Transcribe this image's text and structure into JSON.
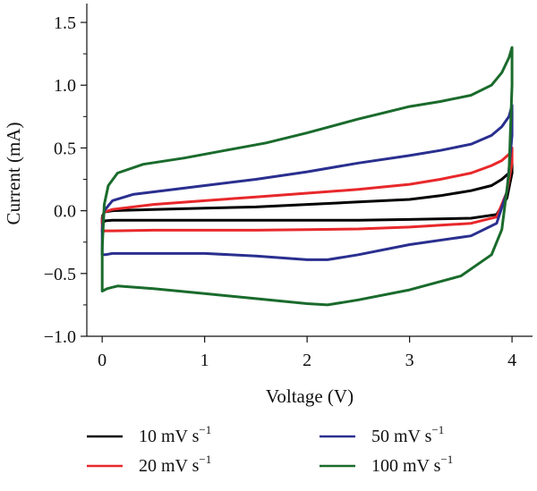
{
  "chart_data": {
    "type": "line",
    "xlabel": "Voltage (V)",
    "ylabel": "Current (mA)",
    "xlim": [
      -0.15,
      4.2
    ],
    "ylim": [
      -1.0,
      1.65
    ],
    "xticks": [
      0,
      1,
      2,
      3,
      4
    ],
    "xtick_labels": [
      "0",
      "1",
      "2",
      "3",
      "4"
    ],
    "yticks": [
      -1.0,
      -0.5,
      0.0,
      0.5,
      1.0,
      1.5
    ],
    "ytick_labels": [
      "−1.0",
      "−0.5",
      "0.0",
      "0.5",
      "1.0",
      "1.5"
    ],
    "grid": false,
    "legend_position": "bottom",
    "series": [
      {
        "name": "10 mV s",
        "unit_exponent": "−1",
        "color": "#000000",
        "x": [
          0.0,
          0.02,
          0.1,
          0.5,
          1.0,
          1.5,
          2.0,
          2.5,
          3.0,
          3.3,
          3.6,
          3.8,
          3.9,
          3.97,
          4.0,
          4.0,
          3.95,
          3.85,
          3.6,
          3.0,
          2.5,
          2.0,
          1.5,
          1.0,
          0.5,
          0.1,
          0.03,
          0.0,
          0.0
        ],
        "y": [
          -0.05,
          -0.01,
          0.0,
          0.01,
          0.02,
          0.03,
          0.05,
          0.07,
          0.09,
          0.12,
          0.16,
          0.2,
          0.25,
          0.3,
          0.38,
          0.3,
          0.1,
          -0.03,
          -0.06,
          -0.07,
          -0.075,
          -0.075,
          -0.075,
          -0.075,
          -0.075,
          -0.075,
          -0.08,
          -0.1,
          -0.05
        ]
      },
      {
        "name": "20 mV s",
        "unit_exponent": "−1",
        "color": "#e8282b",
        "x": [
          0.0,
          0.02,
          0.1,
          0.5,
          1.0,
          1.5,
          2.0,
          2.5,
          3.0,
          3.3,
          3.6,
          3.8,
          3.9,
          3.97,
          4.0,
          4.0,
          3.95,
          3.85,
          3.6,
          3.0,
          2.5,
          2.0,
          1.5,
          1.0,
          0.5,
          0.1,
          0.03,
          0.0,
          0.0
        ],
        "y": [
          -0.08,
          -0.01,
          0.01,
          0.05,
          0.08,
          0.11,
          0.14,
          0.17,
          0.21,
          0.25,
          0.3,
          0.36,
          0.4,
          0.45,
          0.5,
          0.38,
          0.15,
          -0.05,
          -0.1,
          -0.13,
          -0.145,
          -0.15,
          -0.155,
          -0.155,
          -0.155,
          -0.16,
          -0.16,
          -0.165,
          -0.08
        ]
      },
      {
        "name": "50 mV s",
        "unit_exponent": "−1",
        "color": "#2a2f8f",
        "x": [
          0.0,
          0.02,
          0.1,
          0.3,
          0.7,
          1.0,
          1.5,
          2.0,
          2.5,
          3.0,
          3.3,
          3.6,
          3.8,
          3.9,
          3.97,
          4.0,
          4.0,
          3.95,
          3.85,
          3.6,
          3.0,
          2.5,
          2.2,
          2.0,
          1.5,
          1.0,
          0.5,
          0.1,
          0.03,
          0.0,
          0.0
        ],
        "y": [
          -0.15,
          0.0,
          0.08,
          0.13,
          0.17,
          0.2,
          0.25,
          0.31,
          0.38,
          0.44,
          0.48,
          0.53,
          0.6,
          0.67,
          0.75,
          0.84,
          0.6,
          0.15,
          -0.1,
          -0.2,
          -0.27,
          -0.35,
          -0.39,
          -0.39,
          -0.36,
          -0.34,
          -0.34,
          -0.34,
          -0.35,
          -0.35,
          -0.15
        ]
      },
      {
        "name": "100 mV s",
        "unit_exponent": "−1",
        "color": "#1a6b2c",
        "x": [
          0.0,
          0.02,
          0.06,
          0.15,
          0.4,
          0.8,
          1.2,
          1.6,
          2.0,
          2.5,
          3.0,
          3.3,
          3.6,
          3.8,
          3.9,
          3.97,
          4.0,
          4.0,
          3.97,
          3.9,
          3.8,
          3.5,
          3.0,
          2.5,
          2.2,
          2.0,
          1.5,
          1.0,
          0.5,
          0.15,
          0.05,
          0.0,
          0.0
        ],
        "y": [
          -0.3,
          0.05,
          0.2,
          0.3,
          0.37,
          0.42,
          0.48,
          0.54,
          0.62,
          0.73,
          0.83,
          0.87,
          0.92,
          1.0,
          1.1,
          1.22,
          1.3,
          1.0,
          0.3,
          -0.15,
          -0.35,
          -0.52,
          -0.63,
          -0.71,
          -0.75,
          -0.74,
          -0.7,
          -0.66,
          -0.62,
          -0.6,
          -0.62,
          -0.64,
          -0.3
        ]
      }
    ]
  }
}
